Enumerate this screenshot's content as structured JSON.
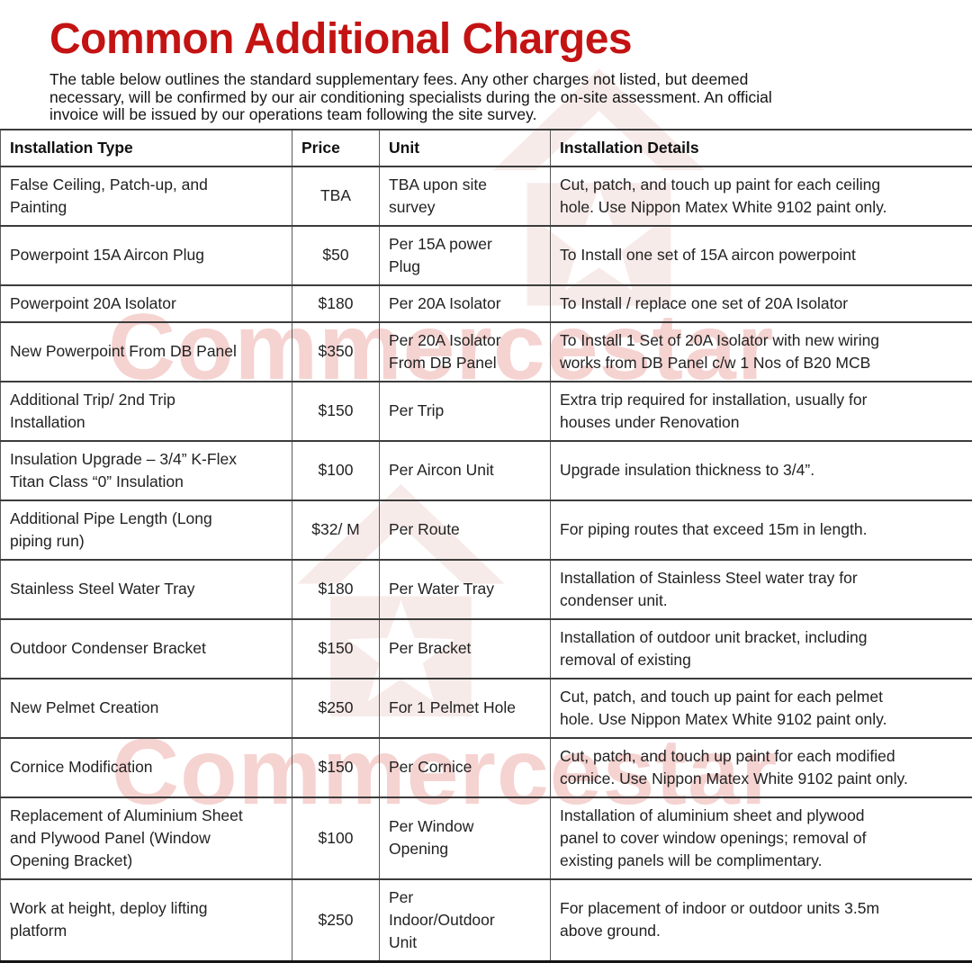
{
  "page": {
    "title": "Common Additional Charges",
    "subtitle": "The table below outlines the standard supplementary fees. Any other charges not listed, but deemed\nnecessary, will be confirmed by our air conditioning specialists during the on-site assessment. An official\ninvoice will be issued by our operations team following the site survey."
  },
  "colors": {
    "title_red": "#c31313",
    "watermark_pink": "#f5d3d1"
  },
  "watermark": {
    "text": "Commercestar"
  },
  "table": {
    "columns": [
      "Installation Type",
      "Price",
      "Unit",
      "Installation Details"
    ],
    "rows": [
      {
        "type": "False Ceiling, Patch-up, and\nPainting",
        "price": "TBA",
        "unit": "TBA upon site\nsurvey",
        "details": "Cut, patch, and touch up paint for each ceiling\nhole. Use Nippon Matex White 9102 paint only."
      },
      {
        "type": "Powerpoint 15A Aircon Plug",
        "price": "$50",
        "unit": "Per 15A power\nPlug",
        "details": "To Install one set of 15A aircon powerpoint"
      },
      {
        "type": "Powerpoint 20A Isolator",
        "price": "$180",
        "unit": "Per 20A Isolator",
        "details": "To Install / replace one set of 20A Isolator"
      },
      {
        "type": "New Powerpoint From DB Panel",
        "price": "$350",
        "unit": "Per 20A Isolator\nFrom DB Panel",
        "details": "To Install 1 Set of 20A Isolator with new wiring\nworks from DB Panel c/w 1 Nos of B20 MCB"
      },
      {
        "type": "Additional Trip/ 2nd Trip\nInstallation",
        "price": "$150",
        "unit": "Per Trip",
        "details": "Extra trip required for installation, usually for\nhouses under Renovation"
      },
      {
        "type": "Insulation Upgrade – 3/4” K-Flex\nTitan Class “0” Insulation",
        "price": "$100",
        "unit": "Per Aircon Unit",
        "details": "Upgrade insulation thickness to 3/4”."
      },
      {
        "type": "Additional Pipe Length (Long\npiping run)",
        "price": "$32/ M",
        "unit": "Per Route",
        "details": "For piping routes that exceed 15m in length."
      },
      {
        "type": "Stainless Steel Water Tray",
        "price": "$180",
        "unit": "Per Water Tray",
        "details": "Installation of Stainless Steel water tray for\ncondenser unit."
      },
      {
        "type": "Outdoor Condenser Bracket",
        "price": "$150",
        "unit": "Per Bracket",
        "details": "Installation of outdoor unit bracket, including\nremoval of existing"
      },
      {
        "type": "New Pelmet Creation",
        "price": "$250",
        "unit": "For 1 Pelmet Hole",
        "details": "Cut, patch, and touch up paint for each pelmet\nhole. Use Nippon Matex White 9102 paint only."
      },
      {
        "type": "Cornice Modification",
        "price": "$150",
        "unit": "Per Cornice",
        "details": "Cut, patch, and touch up paint for each modified\ncornice. Use Nippon Matex White 9102 paint only."
      },
      {
        "type": "Replacement of Aluminium Sheet\nand Plywood Panel (Window\nOpening Bracket)",
        "price": "$100",
        "unit": "Per Window\nOpening",
        "details": "Installation of aluminium sheet and plywood\npanel to cover window openings; removal of\nexisting panels will be complimentary."
      },
      {
        "type": "Work at height, deploy lifting\nplatform",
        "price": "$250",
        "unit": "Per\nIndoor/Outdoor\nUnit",
        "details": "For placement of indoor or outdoor units 3.5m\nabove ground."
      }
    ]
  }
}
